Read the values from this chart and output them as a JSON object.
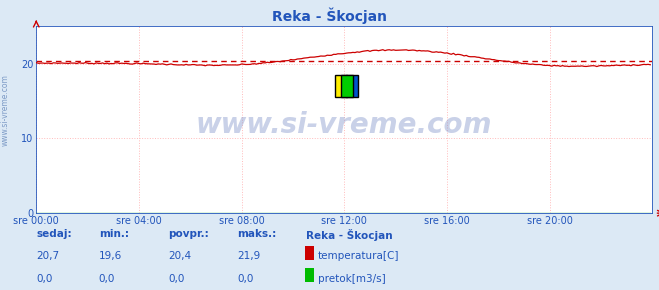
{
  "title": "Reka - Škocjan",
  "bg_color": "#dce9f5",
  "plot_bg_color": "#ffffff",
  "grid_color": "#ffbbbb",
  "x_labels": [
    "sre 00:00",
    "sre 04:00",
    "sre 08:00",
    "sre 12:00",
    "sre 16:00",
    "sre 20:00"
  ],
  "x_ticks": [
    0,
    48,
    96,
    144,
    192,
    240
  ],
  "x_max": 288,
  "y_min": 0,
  "y_max": 25,
  "y_ticks": [
    0,
    10,
    20
  ],
  "temp_color": "#cc0000",
  "pretok_color": "#00bb00",
  "avg_line_color": "#cc0000",
  "avg_value": 20.4,
  "max_value": 21.9,
  "min_value": 19.6,
  "sedaj_temp": "20,7",
  "sedaj_pretok": "0,0",
  "min_temp": "19,6",
  "min_pretok": "0,0",
  "povpr_temp": "20,4",
  "povpr_pretok": "0,0",
  "maks_temp": "21,9",
  "maks_pretok": "0,0",
  "legend_title": "Reka - Škocjan",
  "label_color": "#2255bb",
  "title_color": "#2255bb",
  "watermark": "www.si-vreme.com",
  "side_text": "www.si-vreme.com"
}
